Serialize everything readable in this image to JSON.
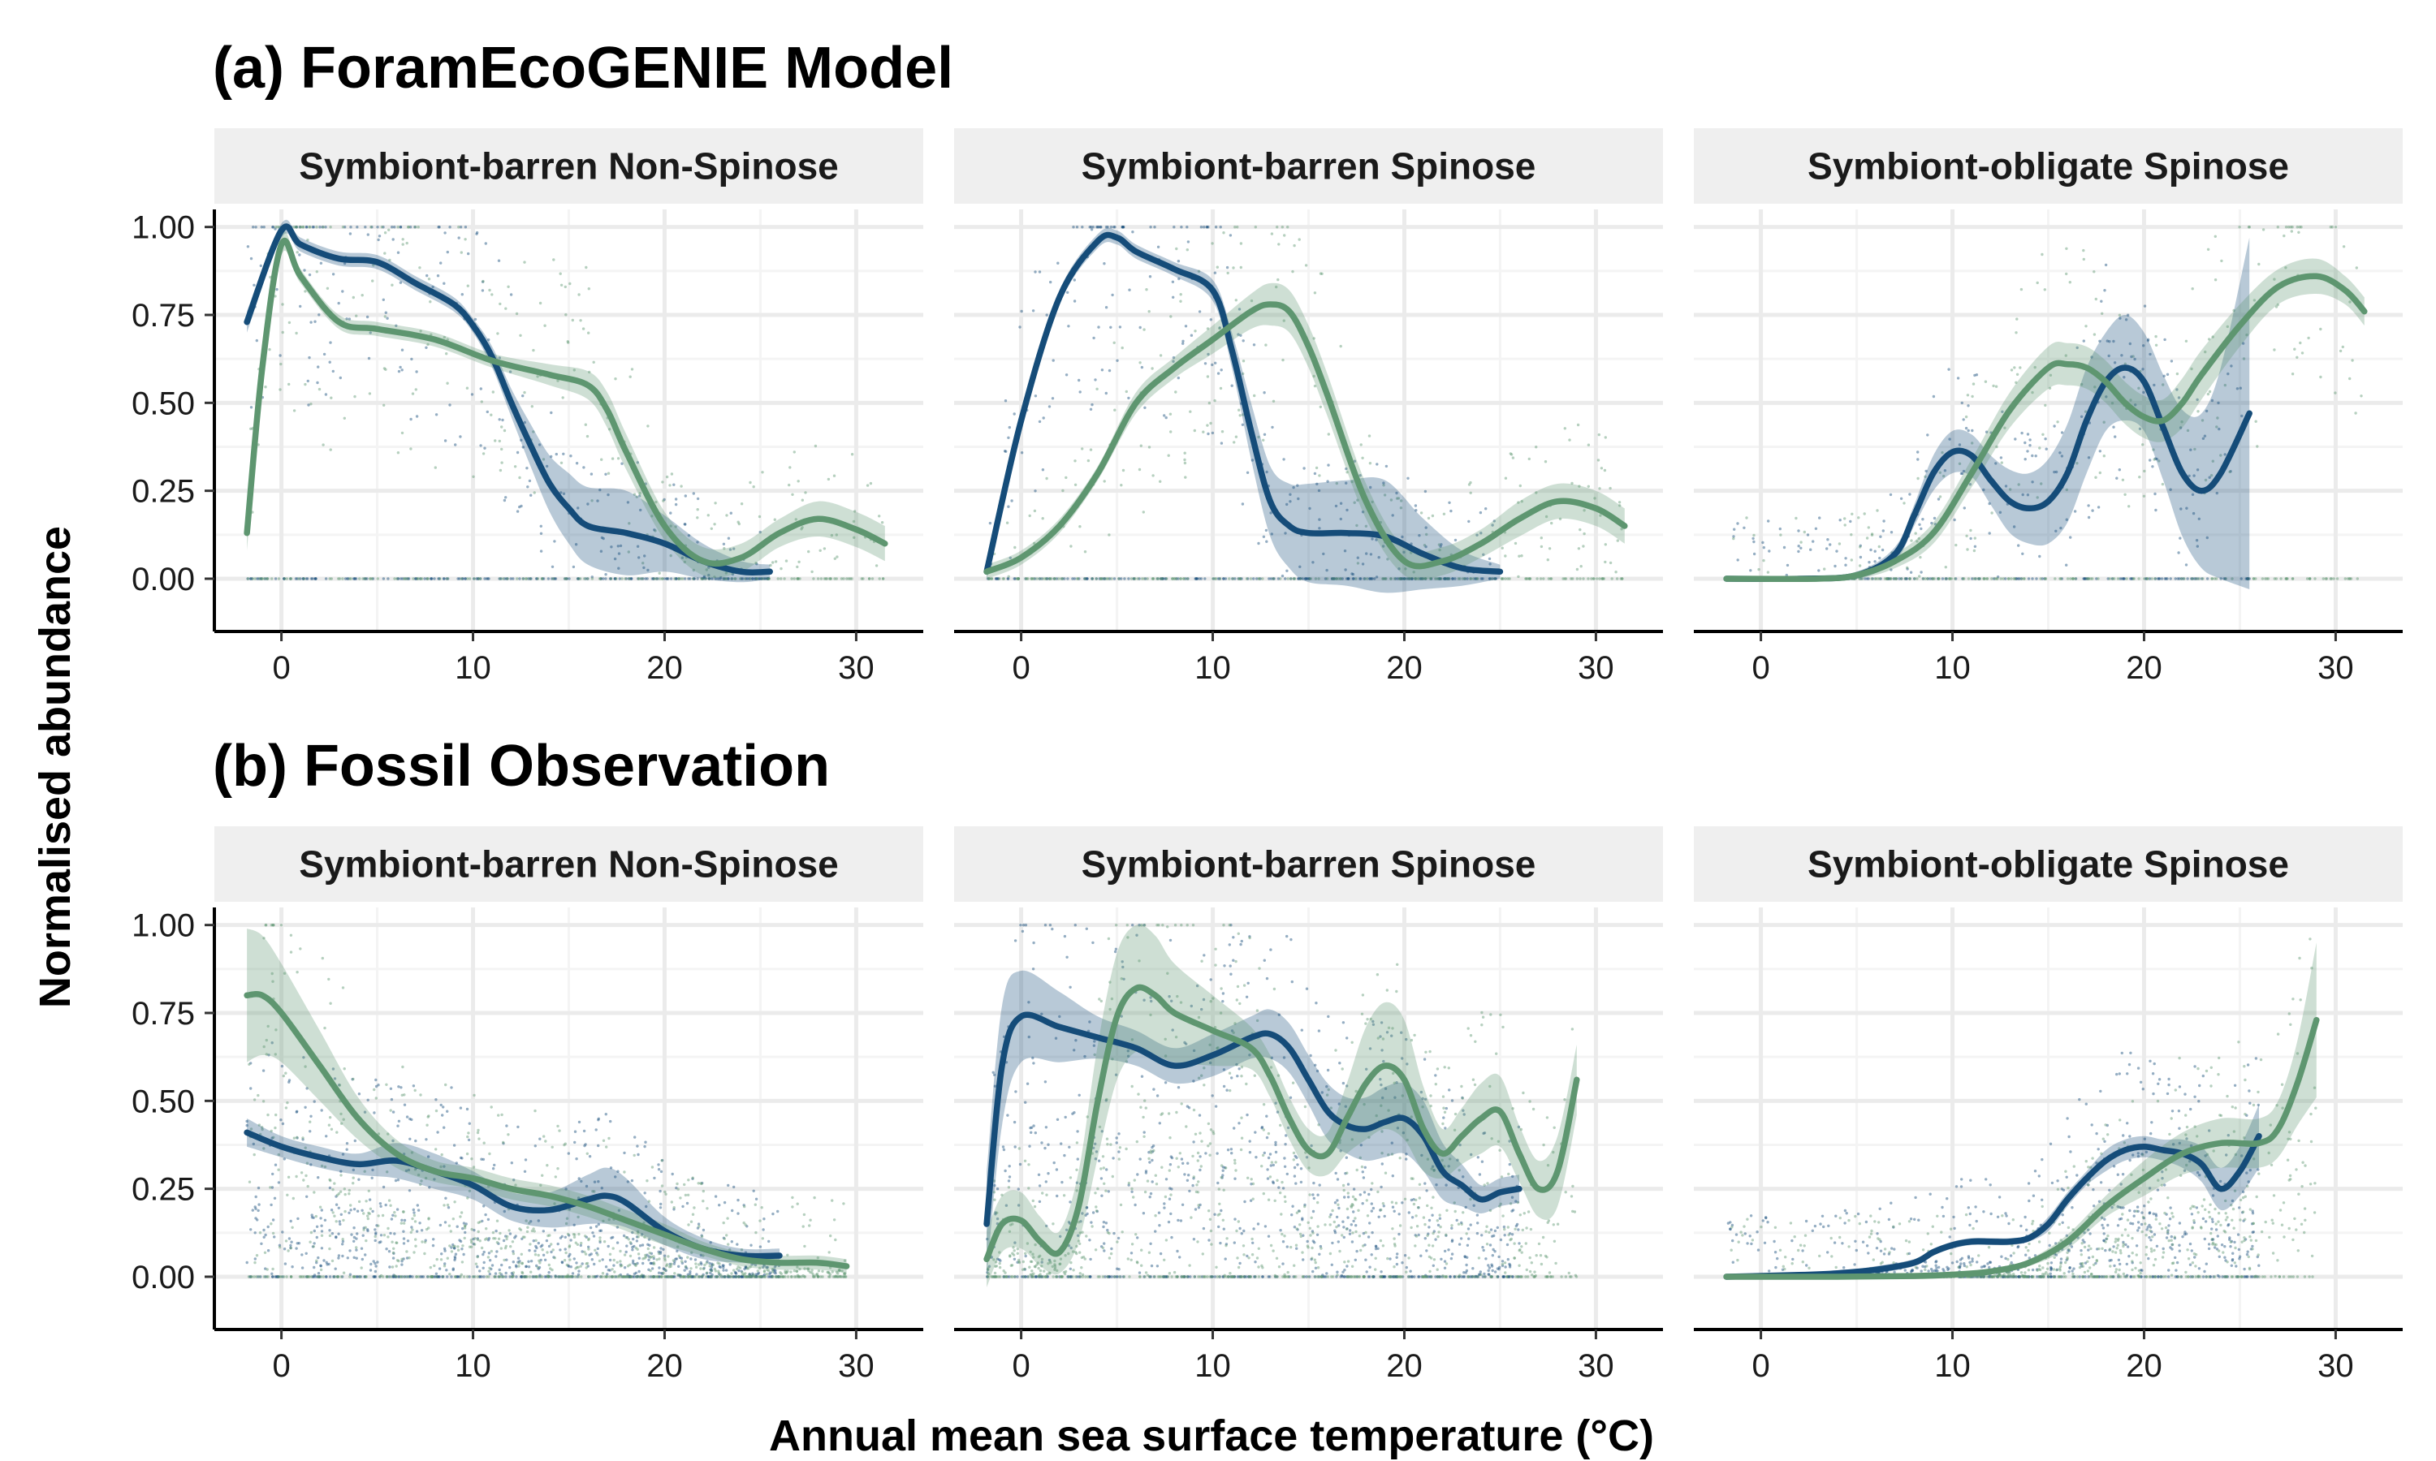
{
  "figure": {
    "xlabel": "Annual mean sea surface temperature (°C)",
    "ylabel": "Normalised abundance"
  },
  "colors": {
    "series_a": "#154c79",
    "series_b": "#5e9670",
    "strip_bg": "#efefef",
    "grid": "#ebebeb"
  },
  "rows": [
    {
      "title": "(a) ForamEcoGENIE Model"
    },
    {
      "title": "(b) Fossil Observation"
    }
  ],
  "chart_data": [
    {
      "type": "line",
      "row": 0,
      "title": "Symbiont-barren Non-Spinose",
      "xlim": [
        -3.5,
        33.5
      ],
      "ylim": [
        -0.15,
        1.05
      ],
      "xticks": [
        0,
        10,
        20,
        30
      ],
      "yticks": [
        "0.00",
        "0.25",
        "0.50",
        "0.75",
        "1.00"
      ],
      "grid": true,
      "series": [
        {
          "color": "#154c79",
          "x": [
            -1.8,
            0,
            1,
            3,
            5,
            7,
            9,
            10,
            11,
            12,
            13,
            14,
            15,
            16,
            18,
            20,
            22,
            24,
            25.5
          ],
          "y": [
            0.73,
            0.99,
            0.95,
            0.91,
            0.9,
            0.84,
            0.78,
            0.72,
            0.63,
            0.5,
            0.38,
            0.27,
            0.2,
            0.15,
            0.13,
            0.1,
            0.05,
            0.02,
            0.02
          ],
          "band": [
            0.03,
            0.02,
            0.02,
            0.02,
            0.02,
            0.02,
            0.02,
            0.02,
            0.03,
            0.04,
            0.06,
            0.08,
            0.1,
            0.11,
            0.12,
            0.08,
            0.05,
            0.03,
            0.02
          ]
        },
        {
          "color": "#5e9670",
          "x": [
            -1.8,
            -1,
            0,
            1,
            3,
            5,
            8,
            11,
            14,
            16,
            17,
            18,
            20,
            22,
            24,
            26,
            28,
            30,
            31.5
          ],
          "y": [
            0.13,
            0.6,
            0.95,
            0.86,
            0.73,
            0.71,
            0.68,
            0.62,
            0.58,
            0.55,
            0.48,
            0.36,
            0.15,
            0.05,
            0.06,
            0.13,
            0.17,
            0.14,
            0.1
          ],
          "band": [
            0.05,
            0.04,
            0.03,
            0.02,
            0.02,
            0.02,
            0.02,
            0.02,
            0.03,
            0.04,
            0.05,
            0.05,
            0.04,
            0.04,
            0.04,
            0.04,
            0.05,
            0.05,
            0.05
          ]
        }
      ]
    },
    {
      "type": "line",
      "row": 0,
      "title": "Symbiont-barren Spinose",
      "xlim": [
        -3.5,
        33.5
      ],
      "ylim": [
        -0.15,
        1.05
      ],
      "xticks": [
        0,
        10,
        20,
        30
      ],
      "yticks": [
        "0.00",
        "0.25",
        "0.50",
        "0.75",
        "1.00"
      ],
      "grid": true,
      "series": [
        {
          "color": "#154c79",
          "x": [
            -1.8,
            0,
            2,
            4,
            5,
            6,
            8,
            10,
            11,
            12,
            13,
            14,
            15,
            17,
            19,
            21,
            23,
            25
          ],
          "y": [
            0.02,
            0.45,
            0.8,
            0.96,
            0.97,
            0.93,
            0.88,
            0.82,
            0.65,
            0.42,
            0.22,
            0.15,
            0.13,
            0.13,
            0.12,
            0.07,
            0.03,
            0.02
          ],
          "band": [
            0.02,
            0.03,
            0.02,
            0.02,
            0.02,
            0.02,
            0.02,
            0.03,
            0.05,
            0.08,
            0.1,
            0.12,
            0.14,
            0.15,
            0.16,
            0.1,
            0.05,
            0.02
          ]
        },
        {
          "color": "#5e9670",
          "x": [
            -1.8,
            0,
            2,
            4,
            6,
            8,
            10,
            12,
            13,
            14,
            15,
            16,
            18,
            20,
            22,
            24,
            26,
            28,
            30,
            31.5
          ],
          "y": [
            0.02,
            0.06,
            0.15,
            0.3,
            0.5,
            0.6,
            0.68,
            0.76,
            0.78,
            0.76,
            0.66,
            0.52,
            0.22,
            0.05,
            0.05,
            0.1,
            0.17,
            0.22,
            0.2,
            0.15
          ],
          "band": [
            0.02,
            0.02,
            0.02,
            0.02,
            0.03,
            0.03,
            0.04,
            0.05,
            0.06,
            0.06,
            0.06,
            0.06,
            0.05,
            0.04,
            0.04,
            0.04,
            0.05,
            0.05,
            0.05,
            0.05
          ]
        }
      ]
    },
    {
      "type": "line",
      "row": 0,
      "title": "Symbiont-obligate Spinose",
      "xlim": [
        -3.5,
        33.5
      ],
      "ylim": [
        -0.15,
        1.05
      ],
      "xticks": [
        0,
        10,
        20,
        30
      ],
      "yticks": [
        "0.00",
        "0.25",
        "0.50",
        "0.75",
        "1.00"
      ],
      "grid": true,
      "series": [
        {
          "color": "#154c79",
          "x": [
            -1.8,
            2,
            5,
            7,
            8,
            9,
            10,
            11,
            12,
            13,
            14,
            15,
            16,
            17,
            18,
            19,
            20,
            21,
            22,
            23,
            24,
            25.5
          ],
          "y": [
            0,
            0,
            0.01,
            0.07,
            0.18,
            0.3,
            0.36,
            0.35,
            0.28,
            0.22,
            0.2,
            0.22,
            0.3,
            0.45,
            0.56,
            0.6,
            0.56,
            0.43,
            0.3,
            0.25,
            0.3,
            0.47
          ],
          "band": [
            0.0,
            0.0,
            0.01,
            0.02,
            0.03,
            0.05,
            0.06,
            0.06,
            0.07,
            0.09,
            0.1,
            0.12,
            0.14,
            0.15,
            0.14,
            0.15,
            0.14,
            0.15,
            0.18,
            0.22,
            0.3,
            0.5
          ]
        },
        {
          "color": "#5e9670",
          "x": [
            -1.8,
            3,
            5,
            7,
            9,
            11,
            13,
            15,
            16,
            17,
            18,
            19,
            20,
            21,
            22,
            23,
            25,
            27,
            29,
            30.5,
            31.5
          ],
          "y": [
            0,
            0,
            0.01,
            0.05,
            0.13,
            0.3,
            0.48,
            0.6,
            0.61,
            0.6,
            0.56,
            0.5,
            0.46,
            0.45,
            0.5,
            0.58,
            0.72,
            0.83,
            0.86,
            0.82,
            0.76
          ],
          "band": [
            0.0,
            0.0,
            0.01,
            0.02,
            0.03,
            0.04,
            0.05,
            0.06,
            0.06,
            0.06,
            0.06,
            0.06,
            0.06,
            0.06,
            0.07,
            0.07,
            0.06,
            0.05,
            0.05,
            0.04,
            0.04
          ]
        }
      ]
    },
    {
      "type": "line",
      "row": 1,
      "title": "Symbiont-barren Non-Spinose",
      "xlim": [
        -3.5,
        33.5
      ],
      "ylim": [
        -0.15,
        1.05
      ],
      "xticks": [
        0,
        10,
        20,
        30
      ],
      "yticks": [
        "0.00",
        "0.25",
        "0.50",
        "0.75",
        "1.00"
      ],
      "grid": true,
      "series": [
        {
          "color": "#154c79",
          "x": [
            -1.8,
            0,
            2,
            4,
            6,
            8,
            10,
            12,
            14,
            16,
            17,
            18,
            20,
            22,
            24,
            26
          ],
          "y": [
            0.41,
            0.37,
            0.34,
            0.32,
            0.33,
            0.3,
            0.26,
            0.2,
            0.19,
            0.22,
            0.23,
            0.21,
            0.13,
            0.08,
            0.06,
            0.06
          ],
          "band": [
            0.04,
            0.03,
            0.03,
            0.03,
            0.05,
            0.05,
            0.04,
            0.04,
            0.05,
            0.07,
            0.08,
            0.07,
            0.04,
            0.03,
            0.02,
            0.02
          ]
        },
        {
          "color": "#5e9670",
          "x": [
            -1.8,
            -1,
            0,
            2,
            4,
            6,
            8,
            10,
            12,
            14,
            16,
            18,
            20,
            22,
            24,
            26,
            28,
            29.5
          ],
          "y": [
            0.8,
            0.8,
            0.75,
            0.6,
            0.45,
            0.35,
            0.3,
            0.28,
            0.25,
            0.23,
            0.2,
            0.16,
            0.12,
            0.08,
            0.05,
            0.04,
            0.04,
            0.03
          ],
          "band": [
            0.19,
            0.17,
            0.14,
            0.1,
            0.06,
            0.04,
            0.03,
            0.03,
            0.03,
            0.03,
            0.03,
            0.03,
            0.03,
            0.02,
            0.02,
            0.02,
            0.02,
            0.02
          ]
        }
      ]
    },
    {
      "type": "line",
      "row": 1,
      "title": "Symbiont-barren Spinose",
      "xlim": [
        -3.5,
        33.5
      ],
      "ylim": [
        -0.15,
        1.05
      ],
      "xticks": [
        0,
        10,
        20,
        30
      ],
      "yticks": [
        "0.00",
        "0.25",
        "0.50",
        "0.75",
        "1.00"
      ],
      "grid": true,
      "series": [
        {
          "color": "#154c79",
          "x": [
            -1.8,
            -1,
            0,
            2,
            4,
            6,
            8,
            10,
            12,
            13,
            14,
            15,
            16,
            17,
            18,
            19,
            20,
            21,
            22,
            23,
            24,
            25,
            26
          ],
          "y": [
            0.15,
            0.6,
            0.74,
            0.71,
            0.68,
            0.65,
            0.6,
            0.63,
            0.68,
            0.69,
            0.65,
            0.56,
            0.47,
            0.43,
            0.42,
            0.44,
            0.45,
            0.4,
            0.3,
            0.26,
            0.22,
            0.24,
            0.25
          ],
          "band": [
            0.15,
            0.17,
            0.13,
            0.1,
            0.06,
            0.05,
            0.05,
            0.06,
            0.06,
            0.07,
            0.07,
            0.07,
            0.08,
            0.08,
            0.09,
            0.1,
            0.1,
            0.1,
            0.08,
            0.06,
            0.04,
            0.04,
            0.04
          ]
        },
        {
          "color": "#5e9670",
          "x": [
            -1.8,
            -1,
            0,
            1,
            2,
            3,
            4,
            5,
            6,
            7,
            8,
            10,
            12,
            13,
            14,
            15,
            16,
            17,
            18,
            19,
            20,
            21,
            22,
            23,
            24,
            25,
            26,
            27,
            28,
            29
          ],
          "y": [
            0.05,
            0.15,
            0.16,
            0.1,
            0.07,
            0.2,
            0.5,
            0.74,
            0.82,
            0.8,
            0.75,
            0.7,
            0.65,
            0.57,
            0.45,
            0.36,
            0.35,
            0.45,
            0.55,
            0.6,
            0.56,
            0.42,
            0.35,
            0.4,
            0.45,
            0.47,
            0.35,
            0.25,
            0.3,
            0.56
          ],
          "band": [
            0.08,
            0.08,
            0.08,
            0.07,
            0.06,
            0.1,
            0.16,
            0.18,
            0.18,
            0.17,
            0.14,
            0.1,
            0.06,
            0.06,
            0.06,
            0.06,
            0.06,
            0.1,
            0.16,
            0.18,
            0.17,
            0.12,
            0.07,
            0.08,
            0.1,
            0.1,
            0.08,
            0.08,
            0.1,
            0.1
          ]
        }
      ]
    },
    {
      "type": "line",
      "row": 1,
      "title": "Symbiont-obligate Spinose",
      "xlim": [
        -3.5,
        33.5
      ],
      "ylim": [
        -0.15,
        1.05
      ],
      "xticks": [
        0,
        10,
        20,
        30
      ],
      "yticks": [
        "0.00",
        "0.25",
        "0.50",
        "0.75",
        "1.00"
      ],
      "grid": true,
      "series": [
        {
          "color": "#154c79",
          "x": [
            -1.8,
            2,
            4,
            6,
            8,
            9,
            10,
            11,
            12,
            13,
            14,
            15,
            16,
            17,
            18,
            19,
            20,
            21,
            22,
            23,
            24,
            25,
            26
          ],
          "y": [
            0,
            0.005,
            0.01,
            0.02,
            0.04,
            0.07,
            0.09,
            0.1,
            0.1,
            0.1,
            0.11,
            0.15,
            0.22,
            0.28,
            0.33,
            0.36,
            0.37,
            0.36,
            0.35,
            0.32,
            0.25,
            0.3,
            0.4
          ],
          "band": [
            0.0,
            0.0,
            0.005,
            0.01,
            0.01,
            0.01,
            0.01,
            0.01,
            0.01,
            0.01,
            0.01,
            0.02,
            0.02,
            0.02,
            0.03,
            0.03,
            0.03,
            0.03,
            0.04,
            0.05,
            0.06,
            0.07,
            0.09
          ]
        },
        {
          "color": "#5e9670",
          "x": [
            -1.8,
            4,
            8,
            10,
            12,
            14,
            16,
            18,
            20,
            22,
            24,
            26,
            27,
            28,
            29
          ],
          "y": [
            0,
            0,
            0.002,
            0.006,
            0.015,
            0.04,
            0.1,
            0.2,
            0.28,
            0.35,
            0.38,
            0.38,
            0.42,
            0.55,
            0.73
          ],
          "band": [
            0.0,
            0.0,
            0.002,
            0.004,
            0.006,
            0.01,
            0.02,
            0.03,
            0.05,
            0.06,
            0.07,
            0.07,
            0.08,
            0.12,
            0.22
          ]
        }
      ]
    }
  ]
}
